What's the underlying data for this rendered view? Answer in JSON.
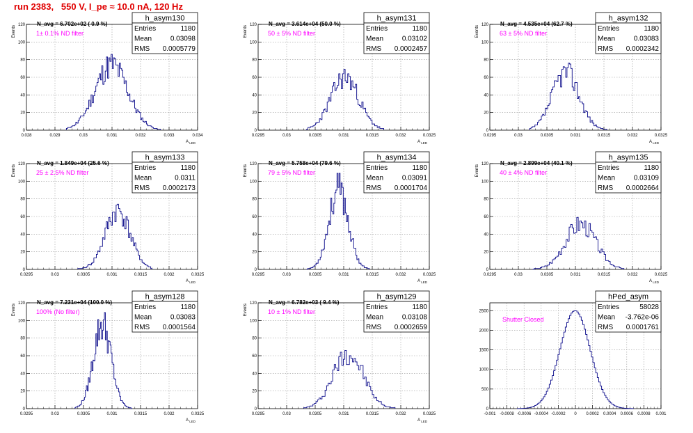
{
  "page": {
    "run_title": "run 2383,   550 V, I_pe ≈ 10.0 nA, 120 Hz",
    "colors": {
      "title": "#e00000",
      "histogram": "#0a0a8a",
      "annotation": "#ff00ff",
      "grid": "#9a9a9a"
    }
  },
  "chart_data": [
    {
      "type": "bar",
      "stats_title": "h_asym130",
      "n_avg": "N_avg = 6.702e+02 ( 0.9 %)",
      "filter": "1± 0.1% ND filter",
      "stats": [
        {
          "label": "Entries",
          "value": "1180"
        },
        {
          "label": "Mean",
          "value": "0.03098"
        },
        {
          "label": "RMS",
          "value": "0.0005779"
        }
      ],
      "ylabel": "Events",
      "xlabel": "A_LED",
      "xlim": [
        0.028,
        0.034
      ],
      "ylim": [
        0,
        120
      ],
      "xticks": [
        0.028,
        0.029,
        0.03,
        0.031,
        0.032,
        0.033,
        0.034
      ],
      "xtick_labels": [
        "0.028",
        "0.029",
        "0.03",
        "0.031",
        "0.032",
        "0.033",
        "0.034"
      ],
      "yticks": [
        0,
        20,
        40,
        60,
        80,
        100,
        120
      ],
      "ytick_labels": [
        "0",
        "20",
        "40",
        "60",
        "80",
        "100",
        "120"
      ],
      "mean": 0.03098,
      "rms": 0.0005779,
      "peak": 74,
      "bins": 80,
      "lo": 0.0294,
      "hi": 0.0327,
      "seed": 11
    },
    {
      "type": "bar",
      "stats_title": "h_asym131",
      "n_avg": "N_avg = 3.614e+04 (50.0 %)",
      "filter": "50 ± 5% ND filter",
      "stats": [
        {
          "label": "Entries",
          "value": "1180"
        },
        {
          "label": "Mean",
          "value": "0.03102"
        },
        {
          "label": "RMS",
          "value": "0.0002457"
        }
      ],
      "ylabel": "Events",
      "xlabel": "A_LED",
      "xlim": [
        0.0295,
        0.0325
      ],
      "ylim": [
        0,
        120
      ],
      "xticks": [
        0.0295,
        0.03,
        0.0305,
        0.031,
        0.0315,
        0.032,
        0.0325
      ],
      "xtick_labels": [
        "0.0295",
        "0.03",
        "0.0305",
        "0.031",
        "0.0315",
        "0.032",
        "0.0325"
      ],
      "yticks": [
        0,
        20,
        40,
        60,
        80,
        100,
        120
      ],
      "ytick_labels": [
        "0",
        "20",
        "40",
        "60",
        "80",
        "100",
        "120"
      ],
      "mean": 0.03102,
      "rms": 0.0002457,
      "peak": 60,
      "bins": 60,
      "lo": 0.03035,
      "hi": 0.0317,
      "seed": 23
    },
    {
      "type": "bar",
      "stats_title": "h_asym132",
      "n_avg": "N_avg = 4.535e+04 (62.7 %)",
      "filter": "63 ± 5% ND filter",
      "stats": [
        {
          "label": "Entries",
          "value": "1180"
        },
        {
          "label": "Mean",
          "value": "0.03083"
        },
        {
          "label": "RMS",
          "value": "0.0002342"
        }
      ],
      "ylabel": "Events",
      "xlabel": "A_LED",
      "xlim": [
        0.0295,
        0.0325
      ],
      "ylim": [
        0,
        120
      ],
      "xticks": [
        0.0295,
        0.03,
        0.0305,
        0.031,
        0.0315,
        0.032,
        0.0325
      ],
      "xtick_labels": [
        "0.0295",
        "0.03",
        "0.0305",
        "0.031",
        "0.0315",
        "0.032",
        "0.0325"
      ],
      "yticks": [
        0,
        20,
        40,
        60,
        80,
        100,
        120
      ],
      "ytick_labels": [
        "0",
        "20",
        "40",
        "60",
        "80",
        "100",
        "120"
      ],
      "mean": 0.03083,
      "rms": 0.0002342,
      "peak": 66,
      "bins": 60,
      "lo": 0.0302,
      "hi": 0.03155,
      "seed": 37
    },
    {
      "type": "bar",
      "stats_title": "h_asym133",
      "n_avg": "N_avg = 1.849e+04 (25.6 %)",
      "filter": "25 ± 2.5% ND filter",
      "stats": [
        {
          "label": "Entries",
          "value": "1180"
        },
        {
          "label": "Mean",
          "value": "0.0311"
        },
        {
          "label": "RMS",
          "value": "0.0002173"
        }
      ],
      "ylabel": "Events",
      "xlabel": "A_LED",
      "xlim": [
        0.0295,
        0.0325
      ],
      "ylim": [
        0,
        120
      ],
      "xticks": [
        0.0295,
        0.03,
        0.0305,
        0.031,
        0.0315,
        0.032,
        0.0325
      ],
      "xtick_labels": [
        "0.0295",
        "0.03",
        "0.0305",
        "0.031",
        "0.0315",
        "0.032",
        "0.0325"
      ],
      "yticks": [
        0,
        20,
        40,
        60,
        80,
        100,
        120
      ],
      "ytick_labels": [
        "0",
        "20",
        "40",
        "60",
        "80",
        "100",
        "120"
      ],
      "mean": 0.0311,
      "rms": 0.0002173,
      "peak": 67,
      "bins": 60,
      "lo": 0.0304,
      "hi": 0.0317,
      "seed": 41
    },
    {
      "type": "bar",
      "stats_title": "h_asym134",
      "n_avg": "N_avg = 5.758e+04 (79.6 %)",
      "filter": "79 ± 5% ND filter",
      "stats": [
        {
          "label": "Entries",
          "value": "1180"
        },
        {
          "label": "Mean",
          "value": "0.03091"
        },
        {
          "label": "RMS",
          "value": "0.0001704"
        }
      ],
      "ylabel": "Events",
      "xlabel": "A_LED",
      "xlim": [
        0.0295,
        0.0325
      ],
      "ylim": [
        0,
        120
      ],
      "xticks": [
        0.0295,
        0.03,
        0.0305,
        0.031,
        0.0315,
        0.032,
        0.0325
      ],
      "xtick_labels": [
        "0.0295",
        "0.03",
        "0.0305",
        "0.031",
        "0.0315",
        "0.032",
        "0.0325"
      ],
      "yticks": [
        0,
        20,
        40,
        60,
        80,
        100,
        120
      ],
      "ytick_labels": [
        "0",
        "20",
        "40",
        "60",
        "80",
        "100",
        "120"
      ],
      "mean": 0.03091,
      "rms": 0.0001704,
      "peak": 90,
      "bins": 60,
      "lo": 0.03035,
      "hi": 0.03145,
      "seed": 53
    },
    {
      "type": "bar",
      "stats_title": "h_asym135",
      "n_avg": "N_avg = 2.899e+04 (40.1 %)",
      "filter": "40 ± 4% ND filter",
      "stats": [
        {
          "label": "Entries",
          "value": "1180"
        },
        {
          "label": "Mean",
          "value": "0.03109"
        },
        {
          "label": "RMS",
          "value": "0.0002664"
        }
      ],
      "ylabel": "Events",
      "xlabel": "A_LED",
      "xlim": [
        0.0295,
        0.0325
      ],
      "ylim": [
        0,
        120
      ],
      "xticks": [
        0.0295,
        0.03,
        0.0305,
        0.031,
        0.0315,
        0.032,
        0.0325
      ],
      "xtick_labels": [
        "0.0295",
        "0.03",
        "0.0305",
        "0.031",
        "0.0315",
        "0.032",
        "0.0325"
      ],
      "yticks": [
        0,
        20,
        40,
        60,
        80,
        100,
        120
      ],
      "ytick_labels": [
        "0",
        "20",
        "40",
        "60",
        "80",
        "100",
        "120"
      ],
      "mean": 0.03109,
      "rms": 0.0002664,
      "peak": 52,
      "bins": 60,
      "lo": 0.03025,
      "hi": 0.03185,
      "seed": 67
    },
    {
      "type": "bar",
      "stats_title": "h_asym128",
      "n_avg": "N_avg = 7.231e+04 (100.0 %)",
      "filter": "100% (No filter)",
      "stats": [
        {
          "label": "Entries",
          "value": "1180"
        },
        {
          "label": "Mean",
          "value": "0.03083"
        },
        {
          "label": "RMS",
          "value": "0.0001564"
        }
      ],
      "ylabel": "Events",
      "xlabel": "A_LED",
      "xlim": [
        0.0295,
        0.0325
      ],
      "ylim": [
        0,
        120
      ],
      "xticks": [
        0.0295,
        0.03,
        0.0305,
        0.031,
        0.0315,
        0.032,
        0.0325
      ],
      "xtick_labels": [
        "0.0295",
        "0.03",
        "0.0305",
        "0.031",
        "0.0315",
        "0.032",
        "0.0325"
      ],
      "yticks": [
        0,
        20,
        40,
        60,
        80,
        100,
        120
      ],
      "ytick_labels": [
        "0",
        "20",
        "40",
        "60",
        "80",
        "100",
        "120"
      ],
      "mean": 0.03083,
      "rms": 0.0001564,
      "peak": 96,
      "bins": 60,
      "lo": 0.03035,
      "hi": 0.03135,
      "seed": 79
    },
    {
      "type": "bar",
      "stats_title": "h_asym129",
      "n_avg": "N_avg = 6.782e+03 ( 9.4 %)",
      "filter": "10 ± 1% ND filter",
      "stats": [
        {
          "label": "Entries",
          "value": "1180"
        },
        {
          "label": "Mean",
          "value": "0.03108"
        },
        {
          "label": "RMS",
          "value": "0.0002659"
        }
      ],
      "ylabel": "Events",
      "xlabel": "A_LED",
      "xlim": [
        0.0295,
        0.0325
      ],
      "ylim": [
        0,
        120
      ],
      "xticks": [
        0.0295,
        0.03,
        0.0305,
        0.031,
        0.0315,
        0.032,
        0.0325
      ],
      "xtick_labels": [
        "0.0295",
        "0.03",
        "0.0305",
        "0.031",
        "0.0315",
        "0.032",
        "0.0325"
      ],
      "yticks": [
        0,
        20,
        40,
        60,
        80,
        100,
        120
      ],
      "ytick_labels": [
        "0",
        "20",
        "40",
        "60",
        "80",
        "100",
        "120"
      ],
      "mean": 0.03108,
      "rms": 0.0002659,
      "peak": 63,
      "bins": 60,
      "lo": 0.0303,
      "hi": 0.0319,
      "seed": 97
    },
    {
      "type": "bar",
      "stats_title": "hPed_asym",
      "n_avg": "",
      "filter": "Shutter Closed",
      "stats": [
        {
          "label": "Entries",
          "value": "58028"
        },
        {
          "label": "Mean",
          "value": "-3.762e-06"
        },
        {
          "label": "RMS",
          "value": "0.0001761"
        }
      ],
      "ylabel": "",
      "xlabel": "",
      "xlim": [
        -0.001,
        0.001
      ],
      "ylim": [
        0,
        2700
      ],
      "xticks": [
        -0.001,
        -0.0008,
        -0.0006,
        -0.0004,
        -0.0002,
        0,
        0.0002,
        0.0004,
        0.0006,
        0.0008,
        0.001
      ],
      "xtick_labels": [
        "-0.001",
        "-0.0008",
        "-0.0006",
        "-0.0004",
        "-0.0002",
        "0",
        "0.0002",
        "0.0004",
        "0.0006",
        "0.0008",
        "0.001"
      ],
      "yticks": [
        0,
        500,
        1000,
        1500,
        2000,
        2500
      ],
      "ytick_labels": [
        "0",
        "500",
        "1000",
        "1500",
        "2000",
        "2500"
      ],
      "mean": -3.762e-06,
      "rms": 0.0001761,
      "peak": 2500,
      "bins": 80,
      "lo": -0.00068,
      "hi": 0.00068,
      "seed": 0
    }
  ]
}
